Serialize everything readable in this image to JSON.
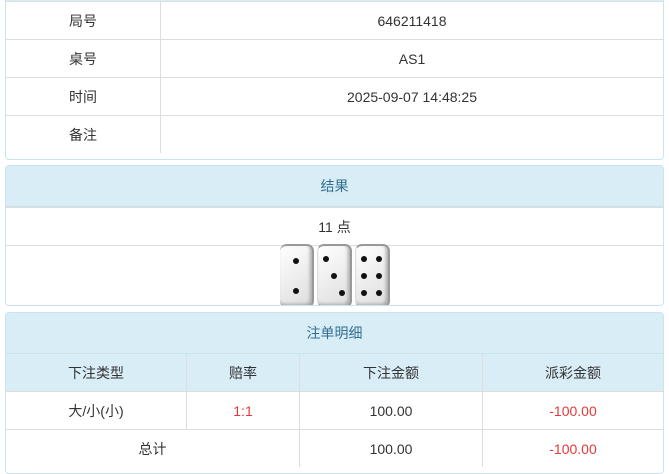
{
  "info": [
    {
      "label": "局号",
      "value": "646211418"
    },
    {
      "label": "桌号",
      "value": "AS1"
    },
    {
      "label": "时间",
      "value": "2025-09-07 14:48:25"
    },
    {
      "label": "备注",
      "value": ""
    }
  ],
  "result": {
    "title": "结果",
    "points": "11 点",
    "dice": [
      2,
      3,
      6
    ]
  },
  "bets": {
    "title": "注单明细",
    "columns": [
      "下注类型",
      "赔率",
      "下注金额",
      "派彩金额"
    ],
    "rows": [
      {
        "type": "大/小(小)",
        "odds": "1:1",
        "amount": "100.00",
        "payout": "-100.00"
      }
    ],
    "total": {
      "label": "总计",
      "amount": "100.00",
      "payout": "-100.00"
    }
  },
  "colors": {
    "header_bg": "#d9edf7",
    "header_text": "#31708f",
    "negative": "#e4393c"
  }
}
